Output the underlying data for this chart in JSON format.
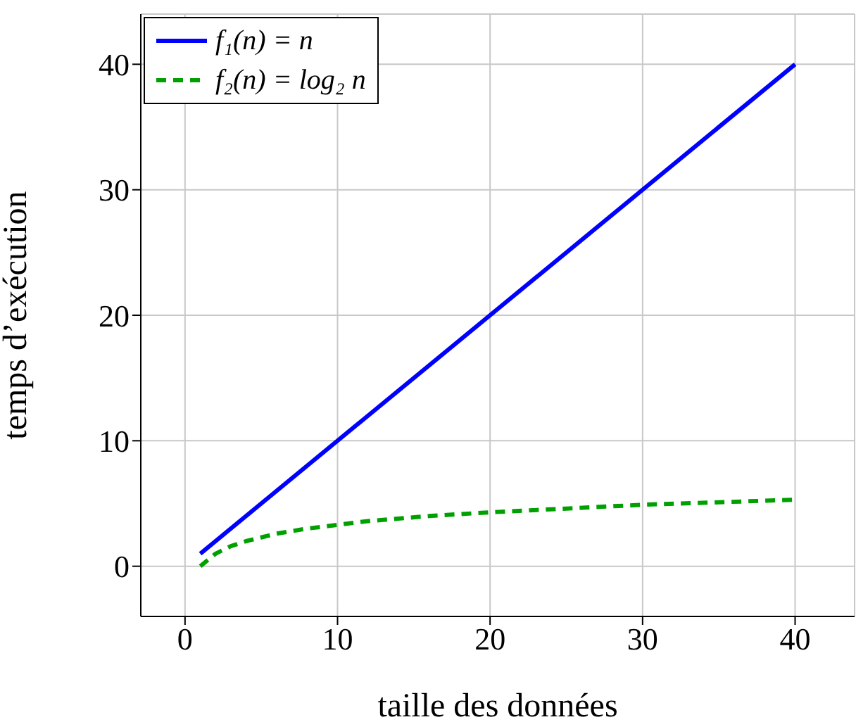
{
  "chart_data": {
    "type": "line",
    "xlabel": "taille des données",
    "ylabel": "temps d’exécution",
    "xlim": [
      -2.9,
      43.9
    ],
    "xticks": [
      0,
      10,
      20,
      30,
      40
    ],
    "ylim": [
      -4,
      44
    ],
    "yticks": [
      0,
      10,
      20,
      30,
      40
    ],
    "grid": true,
    "legend": "top left",
    "marker": "none",
    "series": [
      {
        "name": "f₁(n) = n",
        "color": "#0000ff",
        "line_style": "solid",
        "x": [
          1,
          40
        ],
        "values": [
          1,
          40
        ]
      },
      {
        "name": "f₂(n) = log₂ n",
        "color": "#00a000",
        "line_style": "dashed",
        "x": [
          1,
          2,
          3,
          4,
          6,
          8,
          12,
          16,
          20,
          25,
          30,
          35,
          40
        ],
        "values": [
          0,
          1,
          1.6,
          2,
          2.6,
          3,
          3.6,
          4,
          4.3,
          4.6,
          4.9,
          5.1,
          5.3
        ]
      }
    ]
  }
}
